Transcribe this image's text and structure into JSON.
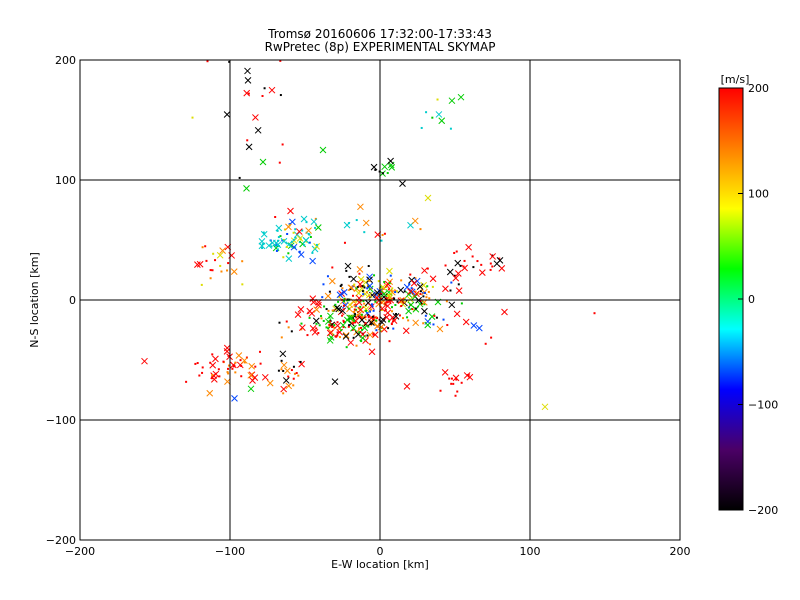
{
  "chart_data": {
    "type": "scatter",
    "title": "Tromsø 20160606 17:32:00-17:33:43",
    "subtitle": "RwPretec (8p) EXPERIMENTAL SKYMAP",
    "xlabel": "E-W location [km]",
    "ylabel": "N-S location [km]",
    "xlim": [
      -200,
      200
    ],
    "ylim": [
      -200,
      200
    ],
    "xticks": [
      "-200",
      "-100",
      "0",
      "100",
      "200"
    ],
    "yticks": [
      "-200",
      "-100",
      "0",
      "100",
      "200"
    ],
    "grid": true,
    "markers": "x and dot symbols colored by line-of-sight velocity",
    "colorbar": {
      "label": "[m/s]",
      "range": [
        -200,
        200
      ],
      "ticks": [
        "200",
        "100",
        "0",
        "-100",
        "-200"
      ],
      "colormap": [
        "#000000",
        "#4b0066",
        "#0000ff",
        "#00ffff",
        "#00ff00",
        "#ffff00",
        "#ff7f00",
        "#ff0000"
      ]
    },
    "clusters": [
      {
        "x": 3,
        "y": 3,
        "sx": 20,
        "sy": 10,
        "n": 240,
        "palette": [
          "red",
          "black",
          "green",
          "orange",
          "yellow",
          "blue"
        ]
      },
      {
        "x": -20,
        "y": -20,
        "sx": 20,
        "sy": 8,
        "n": 180,
        "palette": [
          "red",
          "red",
          "black",
          "green",
          "orange"
        ]
      },
      {
        "x": -60,
        "y": 50,
        "sx": 12,
        "sy": 8,
        "n": 70,
        "palette": [
          "cyan",
          "green",
          "cyan",
          "yellow",
          "blue"
        ]
      },
      {
        "x": -100,
        "y": -57,
        "sx": 14,
        "sy": 9,
        "n": 55,
        "palette": [
          "red",
          "red",
          "red",
          "orange"
        ]
      },
      {
        "x": -60,
        "y": -62,
        "sx": 7,
        "sy": 6,
        "n": 20,
        "palette": [
          "red",
          "black",
          "orange"
        ]
      },
      {
        "x": 55,
        "y": 30,
        "sx": 14,
        "sy": 8,
        "n": 30,
        "palette": [
          "red",
          "red",
          "black"
        ]
      },
      {
        "x": -110,
        "y": 32,
        "sx": 8,
        "sy": 8,
        "n": 22,
        "palette": [
          "red",
          "yellow",
          "orange"
        ]
      },
      {
        "x": -20,
        "y": 60,
        "sx": 25,
        "sy": 8,
        "n": 22,
        "palette": [
          "red",
          "cyan",
          "orange"
        ]
      },
      {
        "x": 0,
        "y": 110,
        "sx": 6,
        "sy": 5,
        "n": 10,
        "palette": [
          "black",
          "green"
        ]
      },
      {
        "x": -80,
        "y": 150,
        "sx": 12,
        "sy": 30,
        "n": 20,
        "palette": [
          "red",
          "black"
        ]
      },
      {
        "x": 40,
        "y": 160,
        "sx": 10,
        "sy": 10,
        "n": 8,
        "palette": [
          "green",
          "yellow",
          "cyan"
        ]
      },
      {
        "x": 45,
        "y": -68,
        "sx": 10,
        "sy": 7,
        "n": 14,
        "palette": [
          "red",
          "red"
        ]
      },
      {
        "x": 50,
        "y": -20,
        "sx": 12,
        "sy": 8,
        "n": 10,
        "palette": [
          "red",
          "blue"
        ]
      }
    ],
    "singles": [
      {
        "x": -157,
        "y": -51,
        "c": "red",
        "m": "x"
      },
      {
        "x": 110,
        "y": -89,
        "c": "yellow",
        "m": "x"
      },
      {
        "x": 143,
        "y": -11,
        "c": "red",
        "m": "dot"
      },
      {
        "x": 83,
        "y": -10,
        "c": "red",
        "m": "x"
      },
      {
        "x": 80,
        "y": 33,
        "c": "black",
        "m": "x"
      },
      {
        "x": -125,
        "y": 152,
        "c": "yellow",
        "m": "dot"
      },
      {
        "x": -115,
        "y": 199,
        "c": "red",
        "m": "dot"
      },
      {
        "x": -88,
        "y": 183,
        "c": "black",
        "m": "x"
      },
      {
        "x": 54,
        "y": 169,
        "c": "green",
        "m": "x"
      },
      {
        "x": -38,
        "y": 125,
        "c": "green",
        "m": "x"
      },
      {
        "x": -78,
        "y": 115,
        "c": "green",
        "m": "x"
      },
      {
        "x": -89,
        "y": 93,
        "c": "green",
        "m": "x"
      },
      {
        "x": -97,
        "y": -82,
        "c": "blue",
        "m": "x"
      },
      {
        "x": -86,
        "y": -74,
        "c": "green",
        "m": "x"
      },
      {
        "x": -30,
        "y": -68,
        "c": "black",
        "m": "x"
      },
      {
        "x": 18,
        "y": -72,
        "c": "red",
        "m": "x"
      },
      {
        "x": 32,
        "y": 85,
        "c": "yellow",
        "m": "x"
      },
      {
        "x": 15,
        "y": 97,
        "c": "black",
        "m": "x"
      }
    ]
  }
}
